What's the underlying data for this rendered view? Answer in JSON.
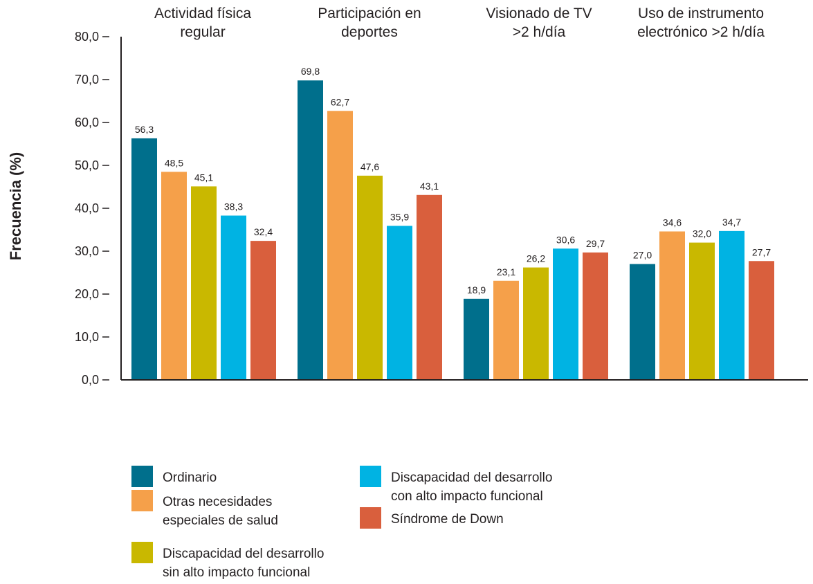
{
  "chart_data": {
    "type": "bar",
    "ylabel": "Frecuencia (%)",
    "ylim": [
      0,
      80
    ],
    "yticks": [
      "0,0",
      "10,0",
      "20,0",
      "30,0",
      "40,0",
      "50,0",
      "60,0",
      "70,0",
      "80,0"
    ],
    "categories": [
      [
        "Actividad física",
        "regular"
      ],
      [
        "Participación en",
        "deportes"
      ],
      [
        "Visionado de TV",
        ">2 h/día"
      ],
      [
        "Uso de instrumento",
        "electrónico >2 h/día"
      ]
    ],
    "series": [
      {
        "name": [
          "Ordinario"
        ],
        "color": "#006f8c",
        "values": [
          56.3,
          69.8,
          18.9,
          27.0
        ],
        "labels": [
          "56,3",
          "69,8",
          "18,9",
          "27,0"
        ]
      },
      {
        "name": [
          "Otras necesidades",
          "especiales de salud"
        ],
        "color": "#f5a04a",
        "values": [
          48.5,
          62.7,
          23.1,
          34.6
        ],
        "labels": [
          "48,5",
          "62,7",
          "23,1",
          "34,6"
        ]
      },
      {
        "name": [
          "Discapacidad del desarrollo",
          "sin alto impacto funcional"
        ],
        "color": "#c9b800",
        "values": [
          45.1,
          47.6,
          26.2,
          32.0
        ],
        "labels": [
          "45,1",
          "47,6",
          "26,2",
          "32,0"
        ]
      },
      {
        "name": [
          "Discapacidad del desarrollo",
          "con alto impacto funcional"
        ],
        "color": "#00b3e3",
        "values": [
          38.3,
          35.9,
          30.6,
          34.7
        ],
        "labels": [
          "38,3",
          "35,9",
          "30,6",
          "34,7"
        ]
      },
      {
        "name": [
          "Síndrome de Down"
        ],
        "color": "#d95f3d",
        "values": [
          32.4,
          43.1,
          29.7,
          27.7
        ],
        "labels": [
          "32,4",
          "43,1",
          "29,7",
          "27,7"
        ]
      }
    ],
    "grid": false,
    "legend": "bottom"
  }
}
